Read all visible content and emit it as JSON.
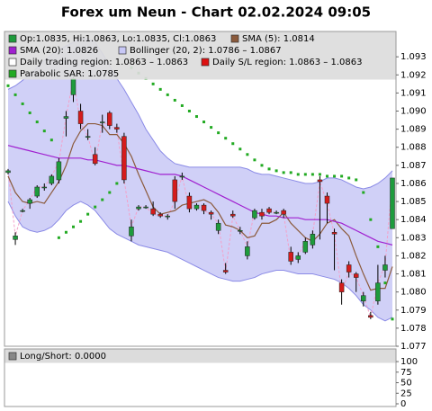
{
  "chart_data": [
    {
      "type": "candlestick",
      "title": "Forex um Neun - Chart 02.02.2024 09:05",
      "ohlc_label": "Op:1.0835, Hi:1.0863, Lo:1.0835, Cl:1.0863",
      "up_color": "#1e9b3c",
      "down_color": "#d41c1c",
      "close_line_color": "#f4a0c8",
      "open": [
        1.0866,
        1.0829,
        1.0845,
        1.0849,
        1.0853,
        1.0858,
        1.086,
        1.0862,
        1.0896,
        1.0909,
        1.09,
        1.0886,
        1.0876,
        1.0894,
        1.0899,
        1.0891,
        1.0886,
        1.0831,
        1.0846,
        1.0847,
        1.0846,
        1.0843,
        1.0842,
        1.0862,
        1.0864,
        1.0853,
        1.0846,
        1.0848,
        1.0844,
        1.0834,
        1.0812,
        1.0843,
        1.0834,
        1.082,
        1.0841,
        1.0844,
        1.0846,
        1.0844,
        1.0845,
        1.0822,
        1.0818,
        1.0822,
        1.0826,
        1.0862,
        1.0853,
        1.0833,
        1.0805,
        1.0815,
        1.081,
        1.0795,
        1.0787,
        1.0795,
        1.0812,
        1.0835
      ],
      "high": [
        1.0868,
        1.0833,
        1.0846,
        1.0852,
        1.0859,
        1.086,
        1.0865,
        1.0874,
        1.09,
        1.092,
        1.0904,
        1.089,
        1.088,
        1.0898,
        1.09,
        1.0893,
        1.0888,
        1.084,
        1.0848,
        1.0848,
        1.085,
        1.0844,
        1.0843,
        1.0864,
        1.0866,
        1.0855,
        1.0849,
        1.0849,
        1.0845,
        1.084,
        1.0816,
        1.0845,
        1.0836,
        1.0828,
        1.0846,
        1.0846,
        1.0847,
        1.0845,
        1.0846,
        1.0825,
        1.0822,
        1.083,
        1.0834,
        1.0864,
        1.0855,
        1.0835,
        1.0807,
        1.0817,
        1.0811,
        1.08,
        1.0789,
        1.0815,
        1.082,
        1.0863
      ],
      "low": [
        1.0865,
        1.0826,
        1.0844,
        1.0846,
        1.0852,
        1.0856,
        1.0859,
        1.086,
        1.0886,
        1.0905,
        1.089,
        1.0884,
        1.087,
        1.0888,
        1.089,
        1.0888,
        1.086,
        1.0828,
        1.0845,
        1.0846,
        1.0842,
        1.0841,
        1.084,
        1.0846,
        1.0862,
        1.0844,
        1.0845,
        1.0843,
        1.084,
        1.0832,
        1.081,
        1.0841,
        1.0832,
        1.0818,
        1.084,
        1.084,
        1.0843,
        1.0843,
        1.0841,
        1.0815,
        1.0816,
        1.0821,
        1.0824,
        1.0829,
        1.0838,
        1.0812,
        1.0793,
        1.0808,
        1.08,
        1.0792,
        1.0785,
        1.0793,
        1.0808,
        1.0835
      ],
      "close": [
        1.0867,
        1.0831,
        1.0845,
        1.0851,
        1.0858,
        1.0858,
        1.0864,
        1.0872,
        1.0897,
        1.0918,
        1.0893,
        1.0886,
        1.0871,
        1.0894,
        1.0892,
        1.089,
        1.0862,
        1.0836,
        1.0847,
        1.0847,
        1.0843,
        1.0842,
        1.0842,
        1.085,
        1.0864,
        1.0846,
        1.0848,
        1.0845,
        1.0843,
        1.0838,
        1.0811,
        1.0842,
        1.0834,
        1.0825,
        1.0845,
        1.0842,
        1.0844,
        1.0844,
        1.0843,
        1.0817,
        1.082,
        1.0828,
        1.0832,
        1.0861,
        1.0849,
        1.0832,
        1.08,
        1.0811,
        1.0808,
        1.0798,
        1.0786,
        1.0805,
        1.0815,
        1.0863
      ],
      "bollinger": {
        "name": "Bollinger (20, 2): 1.0786 – 1.0867",
        "color": "#c8c8f6",
        "line_color": "#8a8ae6",
        "upper": [
          1.0912,
          1.0914,
          1.0917,
          1.092,
          1.0924,
          1.0928,
          1.0931,
          1.0934,
          1.0936,
          1.0938,
          1.094,
          1.094,
          1.0938,
          1.0932,
          1.0925,
          1.0918,
          1.0912,
          1.0905,
          1.0898,
          1.089,
          1.0884,
          1.0878,
          1.0874,
          1.0871,
          1.087,
          1.0869,
          1.0869,
          1.0869,
          1.0869,
          1.0869,
          1.0869,
          1.0869,
          1.0869,
          1.0868,
          1.0866,
          1.0865,
          1.0865,
          1.0864,
          1.0863,
          1.0862,
          1.0861,
          1.086,
          1.086,
          1.0861,
          1.0863,
          1.0863,
          1.0862,
          1.086,
          1.0858,
          1.0857,
          1.0858,
          1.086,
          1.0863,
          1.0867
        ],
        "lower": [
          1.085,
          1.0842,
          1.0836,
          1.0834,
          1.0833,
          1.0834,
          1.0836,
          1.084,
          1.0845,
          1.0848,
          1.085,
          1.0848,
          1.0845,
          1.084,
          1.0835,
          1.0832,
          1.083,
          1.0828,
          1.0826,
          1.0825,
          1.0824,
          1.0823,
          1.0822,
          1.082,
          1.0818,
          1.0816,
          1.0814,
          1.0812,
          1.081,
          1.0808,
          1.0807,
          1.0806,
          1.0806,
          1.0807,
          1.0808,
          1.081,
          1.0811,
          1.0812,
          1.0812,
          1.0811,
          1.081,
          1.081,
          1.081,
          1.0809,
          1.0808,
          1.0807,
          1.0805,
          1.0802,
          1.0798,
          1.0793,
          1.079,
          1.0786,
          1.0784,
          1.0786
        ]
      },
      "series": [
        {
          "name": "SMA (5): 1.0814",
          "color": "#8b5a3c",
          "values": [
            1.0864,
            1.0855,
            1.085,
            1.0849,
            1.085,
            1.0849,
            1.0855,
            1.0861,
            1.087,
            1.0882,
            1.0889,
            1.0893,
            1.0893,
            1.0892,
            1.0887,
            1.0887,
            1.0882,
            1.0875,
            1.0865,
            1.0856,
            1.0847,
            1.0843,
            1.0844,
            1.0845,
            1.0848,
            1.0849,
            1.085,
            1.0851,
            1.0849,
            1.0844,
            1.0837,
            1.0836,
            1.0834,
            1.083,
            1.0831,
            1.0838,
            1.0838,
            1.084,
            1.0844,
            1.0838,
            1.0834,
            1.083,
            1.0828,
            1.0832,
            1.0838,
            1.084,
            1.0835,
            1.0831,
            1.082,
            1.081,
            1.0801,
            1.0802,
            1.0802,
            1.0814
          ]
        },
        {
          "name": "SMA (20): 1.0826",
          "color": "#a020d0",
          "values": [
            1.0881,
            1.088,
            1.0879,
            1.0878,
            1.0877,
            1.0876,
            1.0875,
            1.0874,
            1.0874,
            1.0874,
            1.0874,
            1.0873,
            1.0873,
            1.0872,
            1.0871,
            1.087,
            1.087,
            1.0869,
            1.0868,
            1.0867,
            1.0866,
            1.0865,
            1.0865,
            1.0865,
            1.0864,
            1.0862,
            1.086,
            1.0858,
            1.0856,
            1.0854,
            1.0852,
            1.085,
            1.0848,
            1.0846,
            1.0844,
            1.0843,
            1.0842,
            1.0842,
            1.0841,
            1.0841,
            1.0841,
            1.084,
            1.084,
            1.084,
            1.084,
            1.0839,
            1.0838,
            1.0836,
            1.0834,
            1.0832,
            1.083,
            1.0828,
            1.0827,
            1.0826
          ]
        }
      ],
      "sar": {
        "name": "Parabolic SAR: 1.0785",
        "color": "#22aa22",
        "values": [
          1.0914,
          1.0909,
          1.0904,
          1.0899,
          1.0894,
          1.0889,
          1.0884,
          1.083,
          1.0833,
          1.0836,
          1.0839,
          1.0843,
          1.0847,
          1.0851,
          1.0855,
          1.086,
          1.0865,
          1.0924,
          1.0921,
          1.0918,
          1.0915,
          1.0912,
          1.0909,
          1.0906,
          1.0903,
          1.09,
          1.0897,
          1.0894,
          1.0891,
          1.0888,
          1.0885,
          1.0882,
          1.0879,
          1.0876,
          1.0873,
          1.087,
          1.0868,
          1.0867,
          1.0866,
          1.0866,
          1.0865,
          1.0865,
          1.0865,
          1.0865,
          1.0864,
          1.0864,
          1.0864,
          1.0863,
          1.0862,
          1.0855,
          1.084,
          1.0825,
          1.0805,
          1.0785
        ]
      },
      "legend_extra": [
        {
          "label": "Daily trading region: 1.0863 – 1.0863",
          "color": "#ffffff"
        },
        {
          "label": "Daily S/L region: 1.0863 – 1.0863",
          "color": "#dd1111"
        }
      ],
      "ylim": [
        1.077,
        1.0944
      ],
      "yticks": [
        1.077,
        1.078,
        1.079,
        {
          "value": 1.08,
          "label": "1.080"
        },
        1.081,
        1.082,
        1.083,
        1.084,
        1.085,
        1.086,
        1.087,
        1.088,
        1.089,
        {
          "value": 1.09,
          "label": "1.090"
        },
        1.091,
        1.092,
        1.093
      ]
    },
    {
      "type": "indicator",
      "legend": "Long/Short: 0.0000",
      "legend_color": "#888888",
      "ylim": [
        0,
        130
      ],
      "yticks": [
        0,
        25,
        50,
        75,
        100
      ]
    }
  ]
}
